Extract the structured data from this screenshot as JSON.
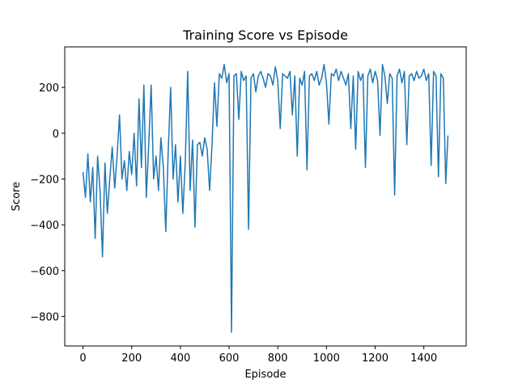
{
  "chart_data": {
    "type": "line",
    "title": "Training Score vs Episode",
    "x_label": "Episode",
    "y_label": "Score",
    "color": "#1f77b4",
    "x": [
      0,
      10,
      20,
      30,
      40,
      50,
      60,
      70,
      80,
      90,
      100,
      110,
      120,
      130,
      140,
      150,
      160,
      170,
      180,
      190,
      200,
      210,
      220,
      230,
      240,
      250,
      260,
      270,
      280,
      290,
      300,
      310,
      320,
      330,
      340,
      350,
      360,
      370,
      380,
      390,
      400,
      410,
      420,
      430,
      440,
      450,
      460,
      470,
      480,
      490,
      500,
      510,
      520,
      530,
      540,
      550,
      560,
      570,
      580,
      590,
      600,
      610,
      620,
      630,
      640,
      650,
      660,
      670,
      680,
      690,
      700,
      710,
      720,
      730,
      740,
      750,
      760,
      770,
      780,
      790,
      800,
      810,
      820,
      830,
      840,
      850,
      860,
      870,
      880,
      890,
      900,
      910,
      920,
      930,
      940,
      950,
      960,
      970,
      980,
      990,
      1000,
      1010,
      1020,
      1030,
      1040,
      1050,
      1060,
      1070,
      1080,
      1090,
      1100,
      1110,
      1120,
      1130,
      1140,
      1150,
      1160,
      1170,
      1180,
      1190,
      1200,
      1210,
      1220,
      1230,
      1240,
      1250,
      1260,
      1270,
      1280,
      1290,
      1300,
      1310,
      1320,
      1330,
      1340,
      1350,
      1360,
      1370,
      1380,
      1390,
      1400,
      1410,
      1420,
      1430,
      1440,
      1450,
      1460,
      1470,
      1480,
      1490,
      1499
    ],
    "values": [
      -170,
      -280,
      -90,
      -300,
      -150,
      -460,
      -100,
      -250,
      -540,
      -130,
      -350,
      -200,
      -60,
      -240,
      -100,
      80,
      -200,
      -120,
      -250,
      -80,
      -180,
      0,
      -230,
      150,
      -150,
      210,
      -280,
      -50,
      210,
      -200,
      -100,
      -250,
      -20,
      -150,
      -430,
      -80,
      200,
      -200,
      -50,
      -300,
      -100,
      -350,
      -130,
      270,
      -250,
      -30,
      -410,
      -50,
      -40,
      -100,
      -20,
      -70,
      -250,
      -50,
      220,
      30,
      260,
      240,
      300,
      220,
      260,
      -870,
      250,
      260,
      60,
      270,
      230,
      250,
      -420,
      240,
      260,
      180,
      250,
      270,
      240,
      200,
      260,
      250,
      210,
      290,
      230,
      20,
      260,
      250,
      240,
      270,
      80,
      250,
      -100,
      240,
      210,
      270,
      -160,
      250,
      260,
      230,
      270,
      210,
      240,
      300,
      220,
      40,
      260,
      250,
      280,
      230,
      270,
      240,
      210,
      260,
      20,
      250,
      -70,
      270,
      230,
      260,
      -150,
      250,
      280,
      220,
      270,
      230,
      -10,
      300,
      250,
      130,
      260,
      240,
      -270,
      250,
      280,
      220,
      270,
      -50,
      250,
      260,
      230,
      270,
      240,
      250,
      280,
      230,
      260,
      -140,
      270,
      250,
      -190,
      260,
      240,
      -220,
      -10
    ],
    "xlim": [
      -75,
      1574
    ],
    "ylim": [
      -929,
      377
    ],
    "xticks": [
      0,
      200,
      400,
      600,
      800,
      1000,
      1200,
      1400
    ],
    "yticks": [
      {
        "value": -800,
        "label": "−800"
      },
      {
        "value": -600,
        "label": "−600"
      },
      {
        "value": -400,
        "label": "−400"
      },
      {
        "value": -200,
        "label": "−200"
      },
      0,
      200
    ]
  }
}
